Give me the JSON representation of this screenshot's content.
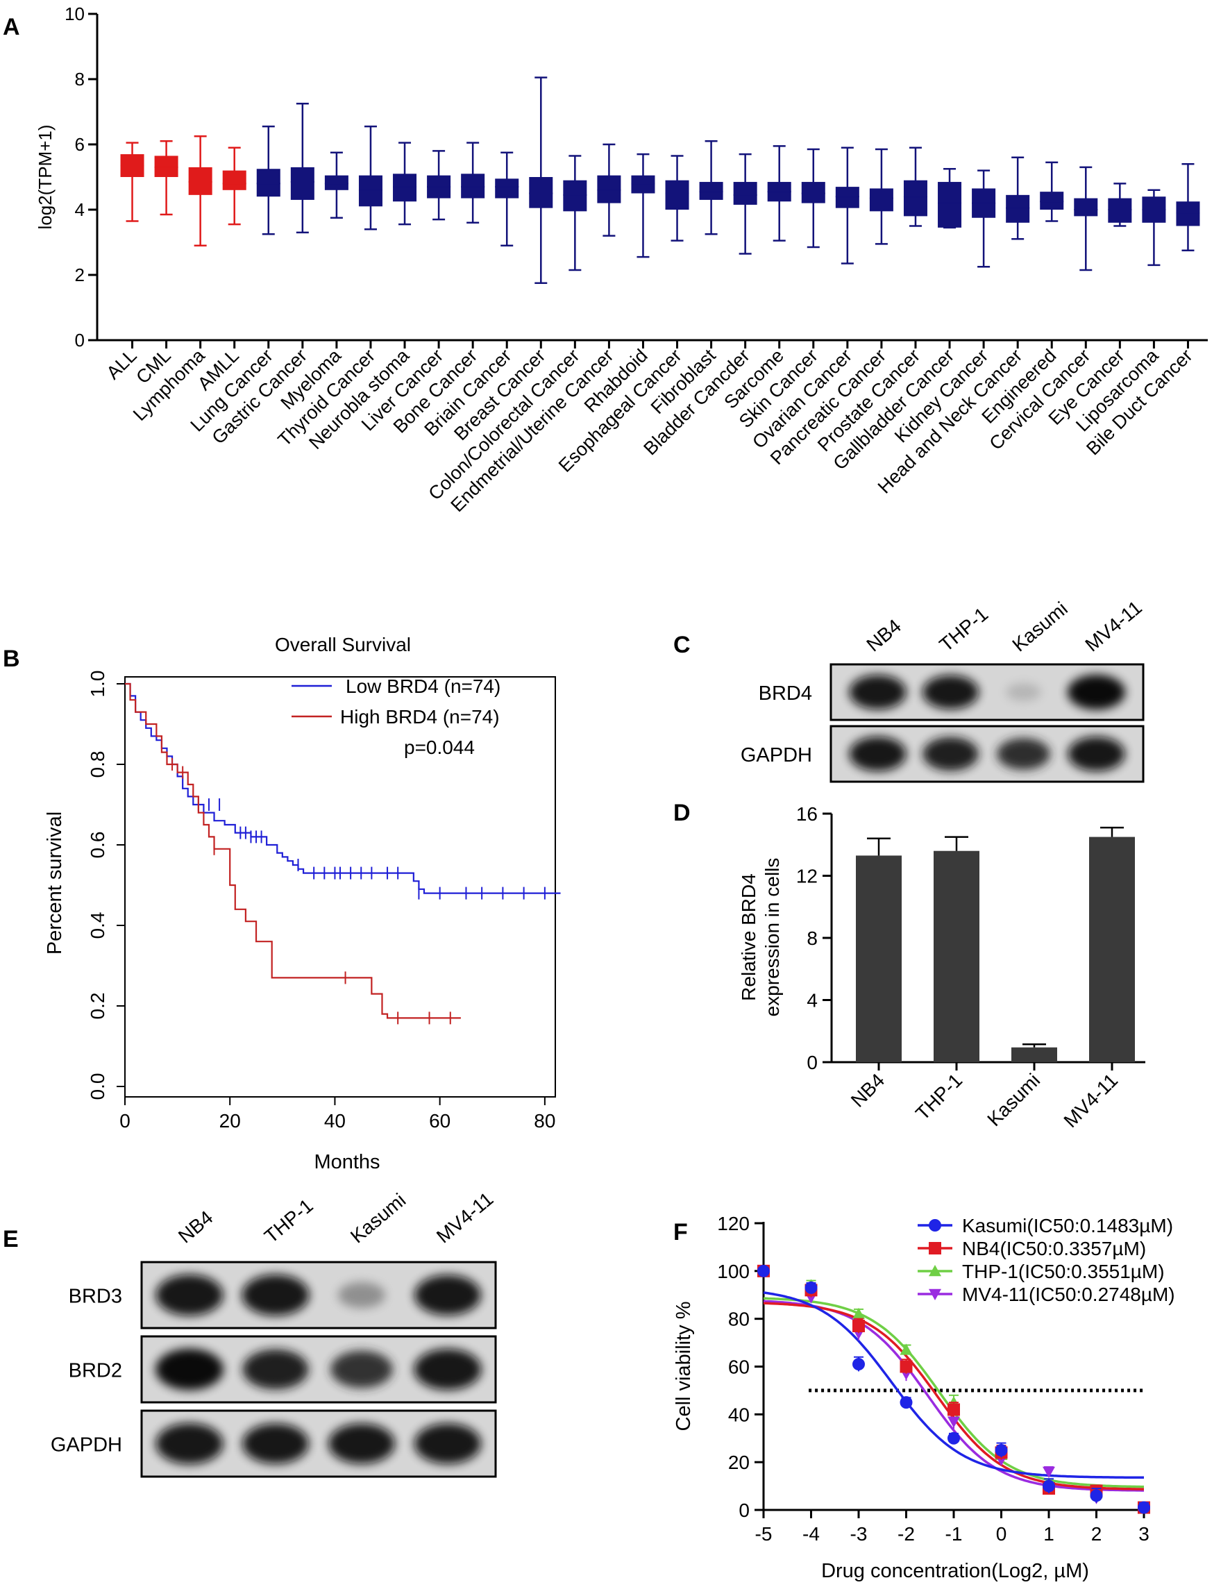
{
  "colors": {
    "leukemia_red": "#e01b1b",
    "solid_navy": "#13137a",
    "survival_low": "#1f1fd6",
    "survival_high": "#c22222",
    "bar_gray": "#3a3a3a",
    "kasumi": "#1f24e6",
    "nb4": "#e01b24",
    "thp1": "#6fcf45",
    "mv411": "#9a2be0"
  },
  "panels": {
    "a": "A",
    "b": "B",
    "c": "C",
    "d": "D",
    "e": "E",
    "f": "F"
  },
  "blots": {
    "c": {
      "lanes": [
        "NB4",
        "THP-1",
        "Kasumi",
        "MV4-11"
      ],
      "rows": [
        "BRD4",
        "GAPDH"
      ],
      "intensity": [
        [
          0.95,
          0.92,
          0.1,
          0.98
        ],
        [
          0.95,
          0.9,
          0.8,
          0.95
        ]
      ]
    },
    "e": {
      "lanes": [
        "NB4",
        "THP-1",
        "Kasumi",
        "MV4-11"
      ],
      "rows": [
        "BRD3",
        "BRD2",
        "GAPDH"
      ],
      "intensity": [
        [
          0.95,
          0.95,
          0.3,
          0.92
        ],
        [
          0.97,
          0.9,
          0.78,
          0.95
        ],
        [
          0.95,
          0.92,
          0.92,
          0.93
        ]
      ]
    }
  },
  "chart_data": [
    {
      "id": "A",
      "type": "boxplot",
      "ylabel": "log2(TPM+1)",
      "ylim": [
        0,
        10
      ],
      "yticks": [
        0,
        2,
        4,
        6,
        8,
        10
      ],
      "categories": [
        "ALL",
        "CML",
        "Lymphoma",
        "AMLL",
        "Lung Cancer",
        "Gastric Cancer",
        "Myeloma",
        "Thyroid Cancer",
        "Neurobla stoma",
        "Liver Cancer",
        "Bone Cancer",
        "Briain Cancer",
        "Breast Cancer",
        "Colon/Colorectal Cancer",
        "Endmetrial/Uterine Cancer",
        "Rhabdoid",
        "Esophageal Cancer",
        "Fibroblast",
        "Bladder Cancder",
        "Sarcome",
        "Skin Cancer",
        "Ovarian Cancer",
        "Pancreatic Cancer",
        "Prostate Cancer",
        "Gallbladder Cancer",
        "Kidney Cancer",
        "Head and Neck Cancer",
        "Engineered",
        "Cervical Cancer",
        "Eye Cancer",
        "Liposarcoma",
        "Bile Duct Cancer"
      ],
      "min": [
        3.65,
        3.85,
        2.9,
        3.55,
        3.25,
        3.3,
        3.75,
        3.4,
        3.55,
        3.7,
        3.6,
        2.9,
        1.75,
        2.15,
        3.2,
        2.55,
        3.05,
        3.25,
        2.65,
        3.05,
        2.85,
        2.35,
        2.95,
        3.5,
        3.45,
        2.25,
        3.1,
        3.65,
        2.15,
        3.5,
        2.3,
        2.75
      ],
      "q1": [
        5.0,
        5.0,
        4.45,
        4.6,
        4.4,
        4.3,
        4.6,
        4.1,
        4.25,
        4.35,
        4.35,
        4.35,
        4.05,
        3.95,
        4.2,
        4.5,
        4.0,
        4.3,
        4.15,
        4.25,
        4.2,
        4.05,
        3.95,
        3.8,
        3.45,
        3.75,
        3.6,
        4.0,
        3.8,
        3.6,
        3.6,
        3.5
      ],
      "median": [
        5.35,
        5.3,
        4.85,
        4.8,
        4.8,
        4.85,
        4.8,
        4.6,
        4.7,
        4.7,
        4.7,
        4.7,
        4.5,
        4.45,
        4.6,
        4.8,
        4.5,
        4.55,
        4.45,
        4.55,
        4.5,
        4.4,
        4.35,
        4.4,
        4.2,
        4.2,
        4.05,
        4.25,
        4.0,
        4.0,
        4.0,
        3.9
      ],
      "q3": [
        5.7,
        5.65,
        5.3,
        5.2,
        5.25,
        5.3,
        5.05,
        5.05,
        5.1,
        5.05,
        5.1,
        4.95,
        5.0,
        4.9,
        5.05,
        5.05,
        4.9,
        4.85,
        4.85,
        4.85,
        4.85,
        4.7,
        4.65,
        4.9,
        4.85,
        4.65,
        4.45,
        4.55,
        4.35,
        4.35,
        4.4,
        4.25
      ],
      "max": [
        6.05,
        6.1,
        6.25,
        5.9,
        6.55,
        7.25,
        5.75,
        6.55,
        6.05,
        5.8,
        6.05,
        5.75,
        8.05,
        5.65,
        6.0,
        5.7,
        5.65,
        6.1,
        5.7,
        5.95,
        5.85,
        5.9,
        5.85,
        5.9,
        5.25,
        5.2,
        5.6,
        5.45,
        5.3,
        4.8,
        4.6,
        5.4
      ],
      "highlight": [
        0,
        1,
        2,
        3
      ]
    },
    {
      "id": "B",
      "type": "line",
      "title": "Overall Survival",
      "xlabel": "Months",
      "ylabel": "Percent survival",
      "xlim": [
        0,
        82
      ],
      "ylim": [
        0,
        1.0
      ],
      "xticks": [
        0,
        20,
        40,
        60,
        80
      ],
      "yticks": [
        0.0,
        0.2,
        0.4,
        0.6,
        0.8,
        1.0
      ],
      "ytick_labels": [
        "0.0",
        "0.2",
        "0.4",
        "0.6",
        "0.8",
        "1.0"
      ],
      "p_value": "p=0.044",
      "series": [
        {
          "name": "Low BRD4 (n=74)",
          "color_key": "survival_low",
          "steps": [
            [
              0,
              1.0
            ],
            [
              1,
              0.97
            ],
            [
              2,
              0.93
            ],
            [
              3,
              0.91
            ],
            [
              4,
              0.89
            ],
            [
              5,
              0.87
            ],
            [
              6,
              0.86
            ],
            [
              7,
              0.84
            ],
            [
              8,
              0.82
            ],
            [
              9,
              0.8
            ],
            [
              10,
              0.77
            ],
            [
              11,
              0.74
            ],
            [
              12,
              0.72
            ],
            [
              13,
              0.7
            ],
            [
              15,
              0.68
            ],
            [
              17,
              0.66
            ],
            [
              19,
              0.65
            ],
            [
              21,
              0.63
            ],
            [
              24,
              0.62
            ],
            [
              27,
              0.6
            ],
            [
              29,
              0.58
            ],
            [
              30,
              0.57
            ],
            [
              31,
              0.56
            ],
            [
              32,
              0.55
            ],
            [
              33,
              0.54
            ],
            [
              34,
              0.53
            ],
            [
              55,
              0.51
            ],
            [
              56,
              0.49
            ],
            [
              57,
              0.48
            ],
            [
              83,
              0.48
            ]
          ],
          "censor": [
            [
              14,
              0.7
            ],
            [
              16,
              0.7
            ],
            [
              18,
              0.7
            ],
            [
              22,
              0.63
            ],
            [
              23,
              0.63
            ],
            [
              24,
              0.62
            ],
            [
              25,
              0.62
            ],
            [
              26,
              0.62
            ],
            [
              33,
              0.55
            ],
            [
              36,
              0.53
            ],
            [
              38,
              0.53
            ],
            [
              40,
              0.53
            ],
            [
              41,
              0.53
            ],
            [
              43,
              0.53
            ],
            [
              45,
              0.53
            ],
            [
              47,
              0.53
            ],
            [
              50,
              0.53
            ],
            [
              52,
              0.53
            ],
            [
              56,
              0.48
            ],
            [
              60,
              0.48
            ],
            [
              65,
              0.48
            ],
            [
              68,
              0.48
            ],
            [
              72,
              0.48
            ],
            [
              76,
              0.48
            ],
            [
              80,
              0.48
            ]
          ]
        },
        {
          "name": "High BRD4 (n=74)",
          "color_key": "survival_high",
          "steps": [
            [
              0,
              1.0
            ],
            [
              1,
              0.96
            ],
            [
              2,
              0.93
            ],
            [
              4,
              0.9
            ],
            [
              6,
              0.87
            ],
            [
              7,
              0.83
            ],
            [
              8,
              0.8
            ],
            [
              10,
              0.78
            ],
            [
              12,
              0.75
            ],
            [
              13,
              0.72
            ],
            [
              14,
              0.68
            ],
            [
              15,
              0.65
            ],
            [
              16,
              0.62
            ],
            [
              17,
              0.59
            ],
            [
              20,
              0.5
            ],
            [
              21,
              0.44
            ],
            [
              23,
              0.41
            ],
            [
              25,
              0.36
            ],
            [
              28,
              0.27
            ],
            [
              47,
              0.23
            ],
            [
              49,
              0.18
            ],
            [
              50,
              0.17
            ],
            [
              64,
              0.17
            ]
          ],
          "censor": [
            [
              9,
              0.8
            ],
            [
              11,
              0.78
            ],
            [
              17,
              0.59
            ],
            [
              42,
              0.27
            ],
            [
              52,
              0.17
            ],
            [
              58,
              0.17
            ],
            [
              62,
              0.17
            ]
          ]
        }
      ]
    },
    {
      "id": "D",
      "type": "bar",
      "ylabel": [
        "Relative BRD4",
        "expression in cells"
      ],
      "categories": [
        "NB4",
        "THP-1",
        "Kasumi",
        "MV4-11"
      ],
      "values": [
        13.3,
        13.6,
        0.95,
        14.5
      ],
      "errors": [
        1.1,
        0.9,
        0.2,
        0.6
      ],
      "ylim": [
        0,
        16
      ],
      "yticks": [
        0,
        4,
        8,
        12,
        16
      ]
    },
    {
      "id": "F",
      "type": "scatter",
      "xlabel": "Drug concentration(Log2, µM)",
      "ylabel": "Cell viability %",
      "xlim": [
        -5,
        3
      ],
      "ylim": [
        0,
        120
      ],
      "xticks": [
        -5,
        -4,
        -3,
        -2,
        -1,
        0,
        1,
        2,
        3
      ],
      "yticks": [
        0,
        20,
        40,
        60,
        80,
        100,
        120
      ],
      "reference_line": 50,
      "x": [
        -5,
        -4,
        -3,
        -2,
        -1,
        0,
        1,
        2,
        3
      ],
      "series": [
        {
          "name": "Kasumi(IC50:0.1483µM)",
          "color_key": "kasumi",
          "marker": "circle",
          "values": [
            100,
            93,
            61,
            45,
            30,
            25,
            10,
            6,
            1
          ],
          "errors": [
            1,
            2,
            3,
            2,
            2,
            3,
            3,
            3,
            2
          ],
          "fit": {
            "top": 93,
            "bottom": 13.5,
            "log_ic50": -2.3,
            "hill": 1.3
          }
        },
        {
          "name": "NB4(IC50:0.3357µM)",
          "color_key": "nb4",
          "marker": "square",
          "values": [
            100,
            92,
            77,
            60,
            42,
            24,
            9,
            8,
            1
          ],
          "errors": [
            1,
            3,
            3,
            3,
            3,
            3,
            2,
            2,
            2
          ],
          "fit": {
            "top": 87,
            "bottom": 8.5,
            "log_ic50": -1.35,
            "hill": 1.35
          }
        },
        {
          "name": "THP-1(IC50:0.3551µM)",
          "color_key": "thp1",
          "marker": "triangle",
          "values": [
            100,
            94,
            82,
            67,
            45,
            23,
            11,
            7,
            1
          ],
          "errors": [
            1,
            2,
            2,
            2,
            3,
            3,
            2,
            2,
            2
          ],
          "fit": {
            "top": 89,
            "bottom": 9.5,
            "log_ic50": -1.3,
            "hill": 1.35
          }
        },
        {
          "name": "MV4-11(IC50:0.2748µM)",
          "color_key": "mv411",
          "marker": "triangle-down",
          "values": [
            100,
            89,
            74,
            57,
            37,
            21,
            16,
            5,
            1
          ],
          "errors": [
            1,
            2,
            3,
            3,
            3,
            2,
            2,
            2,
            2
          ],
          "fit": {
            "top": 88,
            "bottom": 8.0,
            "log_ic50": -1.55,
            "hill": 1.35
          }
        }
      ]
    }
  ]
}
